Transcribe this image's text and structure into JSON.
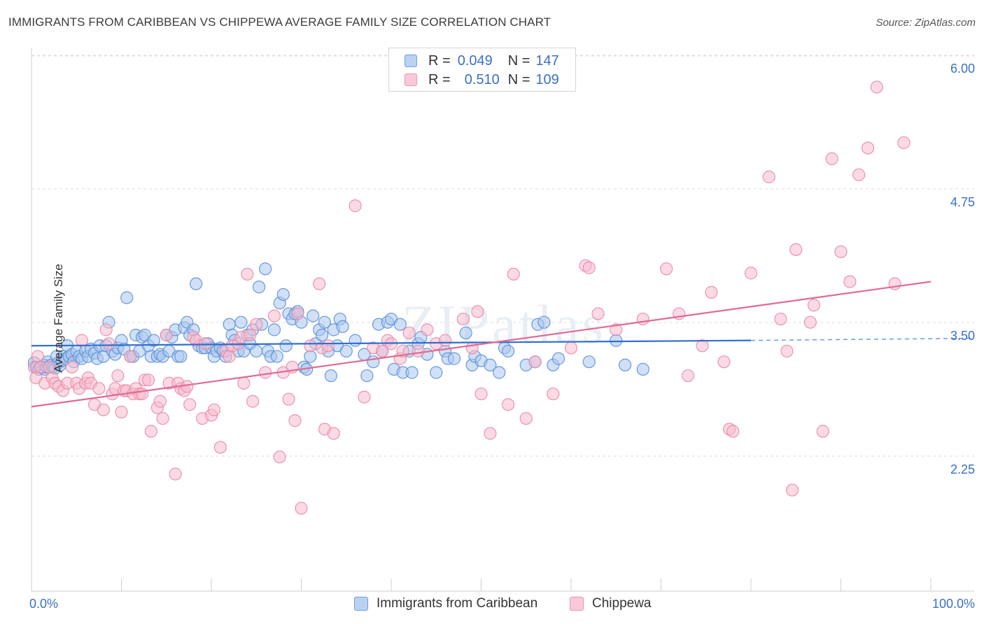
{
  "title": "IMMIGRANTS FROM CARIBBEAN VS CHIPPEWA AVERAGE FAMILY SIZE CORRELATION CHART",
  "source": "Source: ZipAtlas.com",
  "watermark": "ZIPatlas",
  "legend_top": {
    "rows": [
      {
        "r_label": "R =",
        "r_value": "0.049",
        "n_label": "N =",
        "n_value": "147"
      },
      {
        "r_label": "R =",
        "r_value": "0.510",
        "n_label": "N =",
        "n_value": "109"
      }
    ]
  },
  "bottom_legend": {
    "items": [
      "Immigrants from Caribbean",
      "Chippewa"
    ]
  },
  "colors": {
    "blue_fill": "#a9c7ee",
    "blue_stroke": "#5b8fd6",
    "blue_line": "#2f6fd0",
    "pink_fill": "#f7bccd",
    "pink_stroke": "#e88aa6",
    "pink_line": "#e06a94",
    "tick_label": "#3a6fc6",
    "grid": "#dddddd"
  },
  "chart_data": {
    "type": "scatter",
    "title": "IMMIGRANTS FROM CARIBBEAN VS CHIPPEWA AVERAGE FAMILY SIZE CORRELATION CHART",
    "xlabel": "",
    "ylabel": "Average Family Size",
    "xlim": [
      0,
      100
    ],
    "ylim": [
      1.0,
      6.1
    ],
    "x_tick_labels": [
      "0.0%",
      "100.0%"
    ],
    "y_ticks": [
      2.25,
      3.5,
      4.75,
      6.0
    ],
    "y_tick_labels": [
      "2.25",
      "3.50",
      "4.75",
      "6.00"
    ],
    "grid": true,
    "legend_position": "top-center",
    "series": [
      {
        "name": "Immigrants from Caribbean",
        "r": 0.049,
        "n": 147,
        "trend": {
          "x0": 0,
          "y0": 3.4,
          "x1": 80,
          "y1": 3.45,
          "dash_to_x": 100,
          "dash_to_y": 3.47
        },
        "points": [
          [
            0.3,
            3.24
          ],
          [
            0.5,
            3.2
          ],
          [
            0.6,
            3.2
          ],
          [
            0.8,
            3.18
          ],
          [
            1.0,
            3.2
          ],
          [
            1.2,
            3.2
          ],
          [
            1.4,
            3.22
          ],
          [
            1.5,
            3.18
          ],
          [
            1.7,
            3.2
          ],
          [
            1.8,
            3.25
          ],
          [
            2.0,
            3.2
          ],
          [
            2.2,
            3.22
          ],
          [
            2.4,
            3.2
          ],
          [
            2.6,
            3.19
          ],
          [
            2.8,
            3.3
          ],
          [
            3.0,
            3.24
          ],
          [
            3.2,
            3.22
          ],
          [
            3.4,
            3.26
          ],
          [
            3.6,
            3.3
          ],
          [
            3.8,
            3.28
          ],
          [
            4.0,
            3.4
          ],
          [
            4.2,
            3.3
          ],
          [
            4.5,
            3.32
          ],
          [
            4.7,
            3.25
          ],
          [
            5.0,
            3.35
          ],
          [
            5.3,
            3.3
          ],
          [
            5.6,
            3.28
          ],
          [
            6.0,
            3.35
          ],
          [
            6.3,
            3.3
          ],
          [
            6.6,
            3.37
          ],
          [
            7.0,
            3.33
          ],
          [
            7.3,
            3.28
          ],
          [
            7.6,
            3.4
          ],
          [
            8.0,
            3.3
          ],
          [
            8.3,
            3.4
          ],
          [
            8.6,
            3.62
          ],
          [
            9.0,
            3.35
          ],
          [
            9.3,
            3.32
          ],
          [
            9.6,
            3.38
          ],
          [
            10.0,
            3.45
          ],
          [
            10.3,
            3.37
          ],
          [
            10.6,
            3.85
          ],
          [
            11.0,
            3.3
          ],
          [
            11.3,
            3.3
          ],
          [
            11.6,
            3.5
          ],
          [
            12.0,
            3.35
          ],
          [
            12.3,
            3.48
          ],
          [
            12.6,
            3.5
          ],
          [
            13.0,
            3.4
          ],
          [
            13.3,
            3.3
          ],
          [
            13.6,
            3.45
          ],
          [
            14.0,
            3.3
          ],
          [
            14.3,
            3.32
          ],
          [
            14.6,
            3.3
          ],
          [
            15.0,
            3.5
          ],
          [
            15.3,
            3.35
          ],
          [
            15.6,
            3.48
          ],
          [
            16.0,
            3.55
          ],
          [
            16.3,
            3.3
          ],
          [
            16.6,
            3.3
          ],
          [
            17.0,
            3.57
          ],
          [
            17.3,
            3.62
          ],
          [
            17.6,
            3.5
          ],
          [
            18.0,
            3.55
          ],
          [
            18.3,
            3.98
          ],
          [
            18.6,
            3.4
          ],
          [
            19.0,
            3.38
          ],
          [
            19.3,
            3.38
          ],
          [
            19.6,
            3.42
          ],
          [
            20.0,
            3.38
          ],
          [
            20.3,
            3.3
          ],
          [
            20.6,
            3.35
          ],
          [
            21.0,
            3.38
          ],
          [
            21.3,
            3.35
          ],
          [
            21.6,
            3.3
          ],
          [
            22.0,
            3.6
          ],
          [
            22.3,
            3.5
          ],
          [
            22.6,
            3.45
          ],
          [
            23.0,
            3.35
          ],
          [
            23.3,
            3.62
          ],
          [
            23.6,
            3.35
          ],
          [
            24.0,
            3.5
          ],
          [
            24.3,
            3.42
          ],
          [
            24.6,
            3.55
          ],
          [
            25.0,
            3.35
          ],
          [
            25.3,
            3.95
          ],
          [
            25.6,
            3.6
          ],
          [
            26.0,
            4.12
          ],
          [
            26.3,
            3.35
          ],
          [
            26.6,
            3.3
          ],
          [
            27.0,
            3.55
          ],
          [
            27.3,
            3.3
          ],
          [
            27.6,
            3.8
          ],
          [
            28.0,
            3.88
          ],
          [
            28.3,
            3.4
          ],
          [
            28.6,
            3.7
          ],
          [
            29.0,
            3.65
          ],
          [
            29.3,
            3.7
          ],
          [
            29.6,
            3.72
          ],
          [
            30.0,
            3.62
          ],
          [
            30.3,
            3.2
          ],
          [
            30.6,
            3.18
          ],
          [
            31.0,
            3.3
          ],
          [
            31.3,
            3.68
          ],
          [
            31.6,
            3.42
          ],
          [
            32.0,
            3.55
          ],
          [
            32.3,
            3.5
          ],
          [
            32.6,
            3.62
          ],
          [
            33.0,
            3.35
          ],
          [
            33.3,
            3.12
          ],
          [
            33.6,
            3.55
          ],
          [
            34.0,
            3.4
          ],
          [
            34.3,
            3.65
          ],
          [
            34.6,
            3.58
          ],
          [
            35.0,
            3.35
          ],
          [
            36.0,
            3.45
          ],
          [
            37.0,
            3.32
          ],
          [
            37.3,
            3.12
          ],
          [
            38.0,
            3.25
          ],
          [
            38.6,
            3.6
          ],
          [
            39.0,
            3.35
          ],
          [
            39.6,
            3.62
          ],
          [
            40.0,
            3.65
          ],
          [
            40.3,
            3.18
          ],
          [
            41.0,
            3.6
          ],
          [
            41.3,
            3.15
          ],
          [
            42.0,
            3.35
          ],
          [
            42.3,
            3.15
          ],
          [
            43.0,
            3.42
          ],
          [
            43.3,
            3.48
          ],
          [
            44.0,
            3.32
          ],
          [
            45.0,
            3.15
          ],
          [
            46.0,
            3.35
          ],
          [
            46.3,
            3.28
          ],
          [
            47.0,
            3.28
          ],
          [
            48.3,
            3.52
          ],
          [
            49.0,
            3.22
          ],
          [
            49.3,
            3.3
          ],
          [
            50.0,
            3.26
          ],
          [
            51.0,
            3.22
          ],
          [
            52.0,
            3.15
          ],
          [
            52.6,
            3.38
          ],
          [
            53.0,
            3.35
          ],
          [
            55.0,
            3.22
          ],
          [
            56.0,
            3.25
          ],
          [
            56.3,
            3.6
          ],
          [
            57.0,
            3.62
          ],
          [
            58.0,
            3.22
          ],
          [
            58.6,
            3.28
          ],
          [
            62.0,
            3.25
          ],
          [
            65.0,
            3.45
          ],
          [
            66.0,
            3.22
          ],
          [
            68.0,
            3.18
          ]
        ]
      },
      {
        "name": "Chippewa",
        "r": 0.51,
        "n": 109,
        "trend": {
          "x0": 0,
          "y0": 2.83,
          "x1": 100,
          "y1": 4.0
        },
        "points": [
          [
            0.3,
            3.2
          ],
          [
            0.5,
            3.1
          ],
          [
            0.7,
            3.3
          ],
          [
            1.0,
            3.2
          ],
          [
            1.5,
            3.05
          ],
          [
            2.0,
            3.2
          ],
          [
            2.3,
            3.1
          ],
          [
            2.6,
            3.05
          ],
          [
            3.0,
            3.02
          ],
          [
            3.5,
            2.98
          ],
          [
            4.0,
            3.05
          ],
          [
            4.5,
            3.2
          ],
          [
            5.0,
            3.05
          ],
          [
            5.3,
            3.0
          ],
          [
            5.6,
            3.45
          ],
          [
            6.0,
            3.05
          ],
          [
            6.3,
            3.1
          ],
          [
            6.6,
            3.05
          ],
          [
            7.0,
            2.85
          ],
          [
            7.5,
            3.0
          ],
          [
            8.0,
            2.8
          ],
          [
            8.3,
            3.55
          ],
          [
            8.6,
            3.42
          ],
          [
            9.0,
            2.95
          ],
          [
            9.3,
            3.0
          ],
          [
            9.6,
            3.12
          ],
          [
            10.0,
            2.78
          ],
          [
            10.3,
            2.98
          ],
          [
            10.6,
            2.98
          ],
          [
            11.0,
            3.3
          ],
          [
            11.3,
            2.95
          ],
          [
            11.6,
            3.0
          ],
          [
            12.0,
            2.95
          ],
          [
            12.3,
            2.95
          ],
          [
            12.6,
            3.08
          ],
          [
            13.0,
            3.08
          ],
          [
            13.3,
            2.6
          ],
          [
            14.0,
            2.82
          ],
          [
            14.3,
            2.88
          ],
          [
            14.6,
            2.72
          ],
          [
            15.0,
            3.5
          ],
          [
            15.3,
            3.05
          ],
          [
            16.0,
            2.2
          ],
          [
            16.3,
            3.05
          ],
          [
            16.6,
            3.0
          ],
          [
            17.0,
            2.98
          ],
          [
            17.3,
            3.02
          ],
          [
            17.6,
            2.85
          ],
          [
            18.0,
            3.48
          ],
          [
            18.3,
            3.45
          ],
          [
            19.0,
            2.72
          ],
          [
            19.3,
            3.42
          ],
          [
            20.0,
            2.75
          ],
          [
            20.3,
            2.8
          ],
          [
            21.0,
            2.45
          ],
          [
            21.6,
            3.35
          ],
          [
            22.0,
            3.3
          ],
          [
            22.3,
            3.4
          ],
          [
            23.0,
            3.42
          ],
          [
            23.3,
            3.48
          ],
          [
            23.6,
            3.05
          ],
          [
            24.0,
            4.07
          ],
          [
            24.3,
            3.5
          ],
          [
            24.6,
            2.88
          ],
          [
            25.0,
            3.6
          ],
          [
            26.0,
            3.15
          ],
          [
            27.0,
            3.68
          ],
          [
            27.6,
            2.36
          ],
          [
            28.0,
            3.15
          ],
          [
            28.6,
            2.9
          ],
          [
            29.0,
            3.2
          ],
          [
            29.3,
            2.7
          ],
          [
            29.6,
            3.7
          ],
          [
            30.0,
            1.88
          ],
          [
            31.0,
            3.4
          ],
          [
            32.0,
            3.98
          ],
          [
            32.3,
            3.38
          ],
          [
            32.6,
            2.62
          ],
          [
            33.0,
            3.4
          ],
          [
            33.6,
            2.58
          ],
          [
            36.0,
            4.71
          ],
          [
            37.0,
            2.92
          ],
          [
            38.0,
            3.38
          ],
          [
            39.0,
            3.35
          ],
          [
            39.6,
            3.45
          ],
          [
            40.0,
            3.42
          ],
          [
            41.0,
            3.28
          ],
          [
            41.3,
            3.35
          ],
          [
            42.0,
            3.52
          ],
          [
            43.0,
            3.35
          ],
          [
            44.0,
            3.55
          ],
          [
            45.0,
            3.42
          ],
          [
            46.0,
            3.45
          ],
          [
            48.0,
            3.65
          ],
          [
            49.0,
            3.38
          ],
          [
            49.6,
            3.72
          ],
          [
            50.0,
            2.95
          ],
          [
            51.0,
            2.58
          ],
          [
            53.0,
            2.85
          ],
          [
            53.6,
            4.07
          ],
          [
            55.0,
            2.72
          ],
          [
            56.0,
            3.25
          ],
          [
            58.0,
            2.95
          ],
          [
            60.0,
            3.38
          ],
          [
            61.6,
            4.15
          ],
          [
            62.0,
            4.13
          ],
          [
            63.0,
            3.7
          ],
          [
            65.0,
            3.55
          ],
          [
            68.0,
            3.65
          ],
          [
            70.6,
            4.12
          ],
          [
            72.0,
            3.7
          ],
          [
            73.0,
            3.12
          ],
          [
            74.6,
            3.4
          ],
          [
            75.6,
            3.9
          ],
          [
            77.0,
            3.25
          ],
          [
            77.6,
            2.62
          ],
          [
            78.0,
            2.6
          ],
          [
            80.0,
            4.08
          ],
          [
            82.0,
            4.98
          ],
          [
            83.3,
            3.65
          ],
          [
            84.0,
            3.35
          ],
          [
            84.6,
            2.05
          ],
          [
            85.0,
            4.3
          ],
          [
            86.6,
            3.62
          ],
          [
            87.0,
            3.78
          ],
          [
            88.0,
            2.6
          ],
          [
            89.0,
            5.15
          ],
          [
            90.0,
            4.28
          ],
          [
            91.0,
            4.0
          ],
          [
            92.0,
            5.0
          ],
          [
            93.0,
            5.25
          ],
          [
            94.0,
            5.82
          ],
          [
            96.0,
            3.98
          ],
          [
            97.0,
            5.3
          ]
        ]
      }
    ]
  }
}
